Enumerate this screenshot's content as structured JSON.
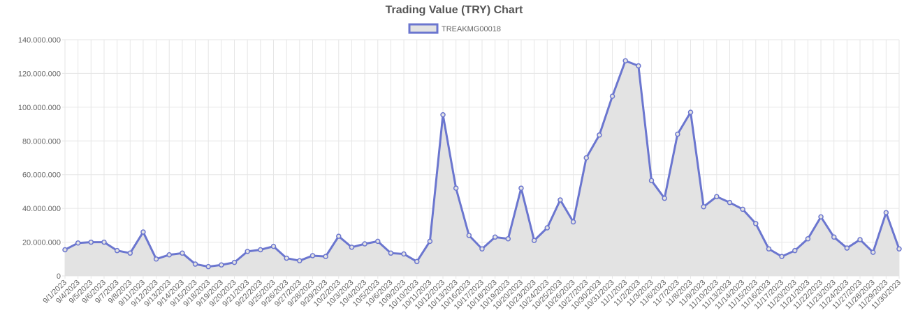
{
  "chart_data": {
    "type": "line",
    "title": "Trading Value (TRY) Chart",
    "categories": [
      "9/1/2023",
      "9/4/2023",
      "9/5/2023",
      "9/6/2023",
      "9/7/2023",
      "9/8/2023",
      "9/11/2023",
      "9/12/2023",
      "9/13/2023",
      "9/14/2023",
      "9/15/2023",
      "9/18/2023",
      "9/19/2023",
      "9/20/2023",
      "9/21/2023",
      "9/22/2023",
      "9/25/2023",
      "9/26/2023",
      "9/27/2023",
      "9/28/2023",
      "9/29/2023",
      "10/2/2023",
      "10/3/2023",
      "10/4/2023",
      "10/5/2023",
      "10/6/2023",
      "10/9/2023",
      "10/10/2023",
      "10/11/2023",
      "10/12/2023",
      "10/13/2023",
      "10/16/2023",
      "10/17/2023",
      "10/18/2023",
      "10/19/2023",
      "10/20/2023",
      "10/23/2023",
      "10/24/2023",
      "10/25/2023",
      "10/26/2023",
      "10/27/2023",
      "10/30/2023",
      "10/31/2023",
      "11/1/2023",
      "11/2/2023",
      "11/3/2023",
      "11/6/2023",
      "11/7/2023",
      "11/8/2023",
      "11/9/2023",
      "11/10/2023",
      "11/13/2023",
      "11/14/2023",
      "11/15/2023",
      "11/16/2023",
      "11/17/2023",
      "11/20/2023",
      "11/21/2023",
      "11/22/2023",
      "11/23/2023",
      "11/24/2023",
      "11/27/2023",
      "11/28/2023",
      "11/29/2023",
      "11/30/2023"
    ],
    "series": [
      {
        "name": "TREAKMG00018",
        "color": "#6b76cf",
        "fill": "#e3e3e3",
        "values": [
          15500000,
          19500000,
          20000000,
          20000000,
          15000000,
          13500000,
          26000000,
          10000000,
          12500000,
          13500000,
          7000000,
          5500000,
          6500000,
          8000000,
          14500000,
          15500000,
          17500000,
          10500000,
          9000000,
          12000000,
          11500000,
          23500000,
          17000000,
          19000000,
          20500000,
          13500000,
          13000000,
          8500000,
          20500000,
          95500000,
          52000000,
          24000000,
          16000000,
          23000000,
          22000000,
          52000000,
          21000000,
          28500000,
          45000000,
          32000000,
          70000000,
          83500000,
          106500000,
          127500000,
          124500000,
          56500000,
          46000000,
          84000000,
          97000000,
          41000000,
          47000000,
          43500000,
          39500000,
          31000000,
          16000000,
          11500000,
          15000000,
          22000000,
          35000000,
          23000000,
          16500000,
          21500000,
          14000000,
          37500000,
          16000000
        ]
      }
    ],
    "ylim": [
      0,
      140000000
    ],
    "yticks": [
      0,
      {
        "value": 20000000,
        "label": "20.000.000"
      },
      {
        "value": 40000000,
        "label": "40.000.000"
      },
      {
        "value": 60000000,
        "label": "60.000.000"
      },
      {
        "value": 80000000,
        "label": "80.000.000"
      },
      {
        "value": 100000000,
        "label": "100.000.000"
      },
      {
        "value": 120000000,
        "label": "120.000.000"
      },
      {
        "value": 140000000,
        "label": "140.000.000"
      }
    ],
    "grid": true,
    "legend": "top"
  }
}
